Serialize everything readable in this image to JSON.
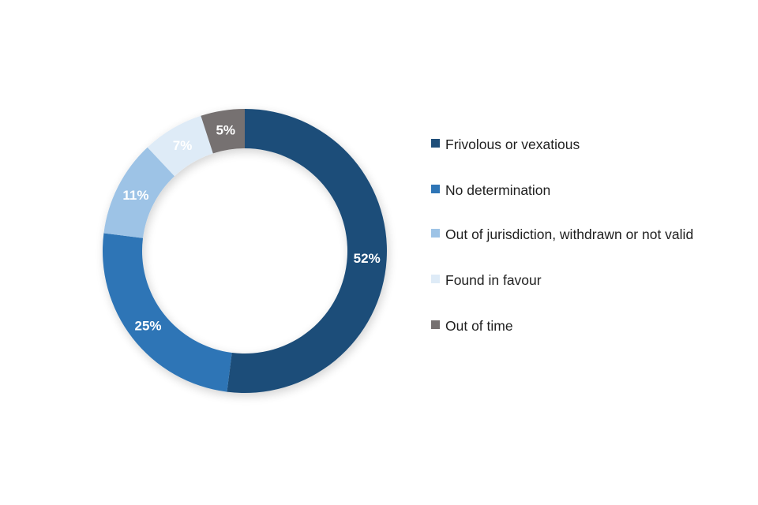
{
  "chart_data": {
    "type": "pie",
    "variant": "donut",
    "title": "",
    "categories": [
      "Frivolous or vexatious",
      "No determination",
      "Out of jurisdiction, withdrawn or not valid",
      "Found in favour",
      "Out of time"
    ],
    "values": [
      52,
      25,
      11,
      7,
      5
    ],
    "data_labels": [
      "52%",
      "25%",
      "11%",
      "7%",
      "5%"
    ],
    "colors": [
      "#1f4e79",
      "#2e75b6",
      "#9dc3e6",
      "#deebf7",
      "#767171"
    ],
    "label_colors": [
      "#ffffff",
      "#ffffff",
      "#ffffff",
      "#ffffff",
      "#ffffff"
    ],
    "legend_position": "right",
    "start_angle": "top",
    "direction": "clockwise"
  }
}
